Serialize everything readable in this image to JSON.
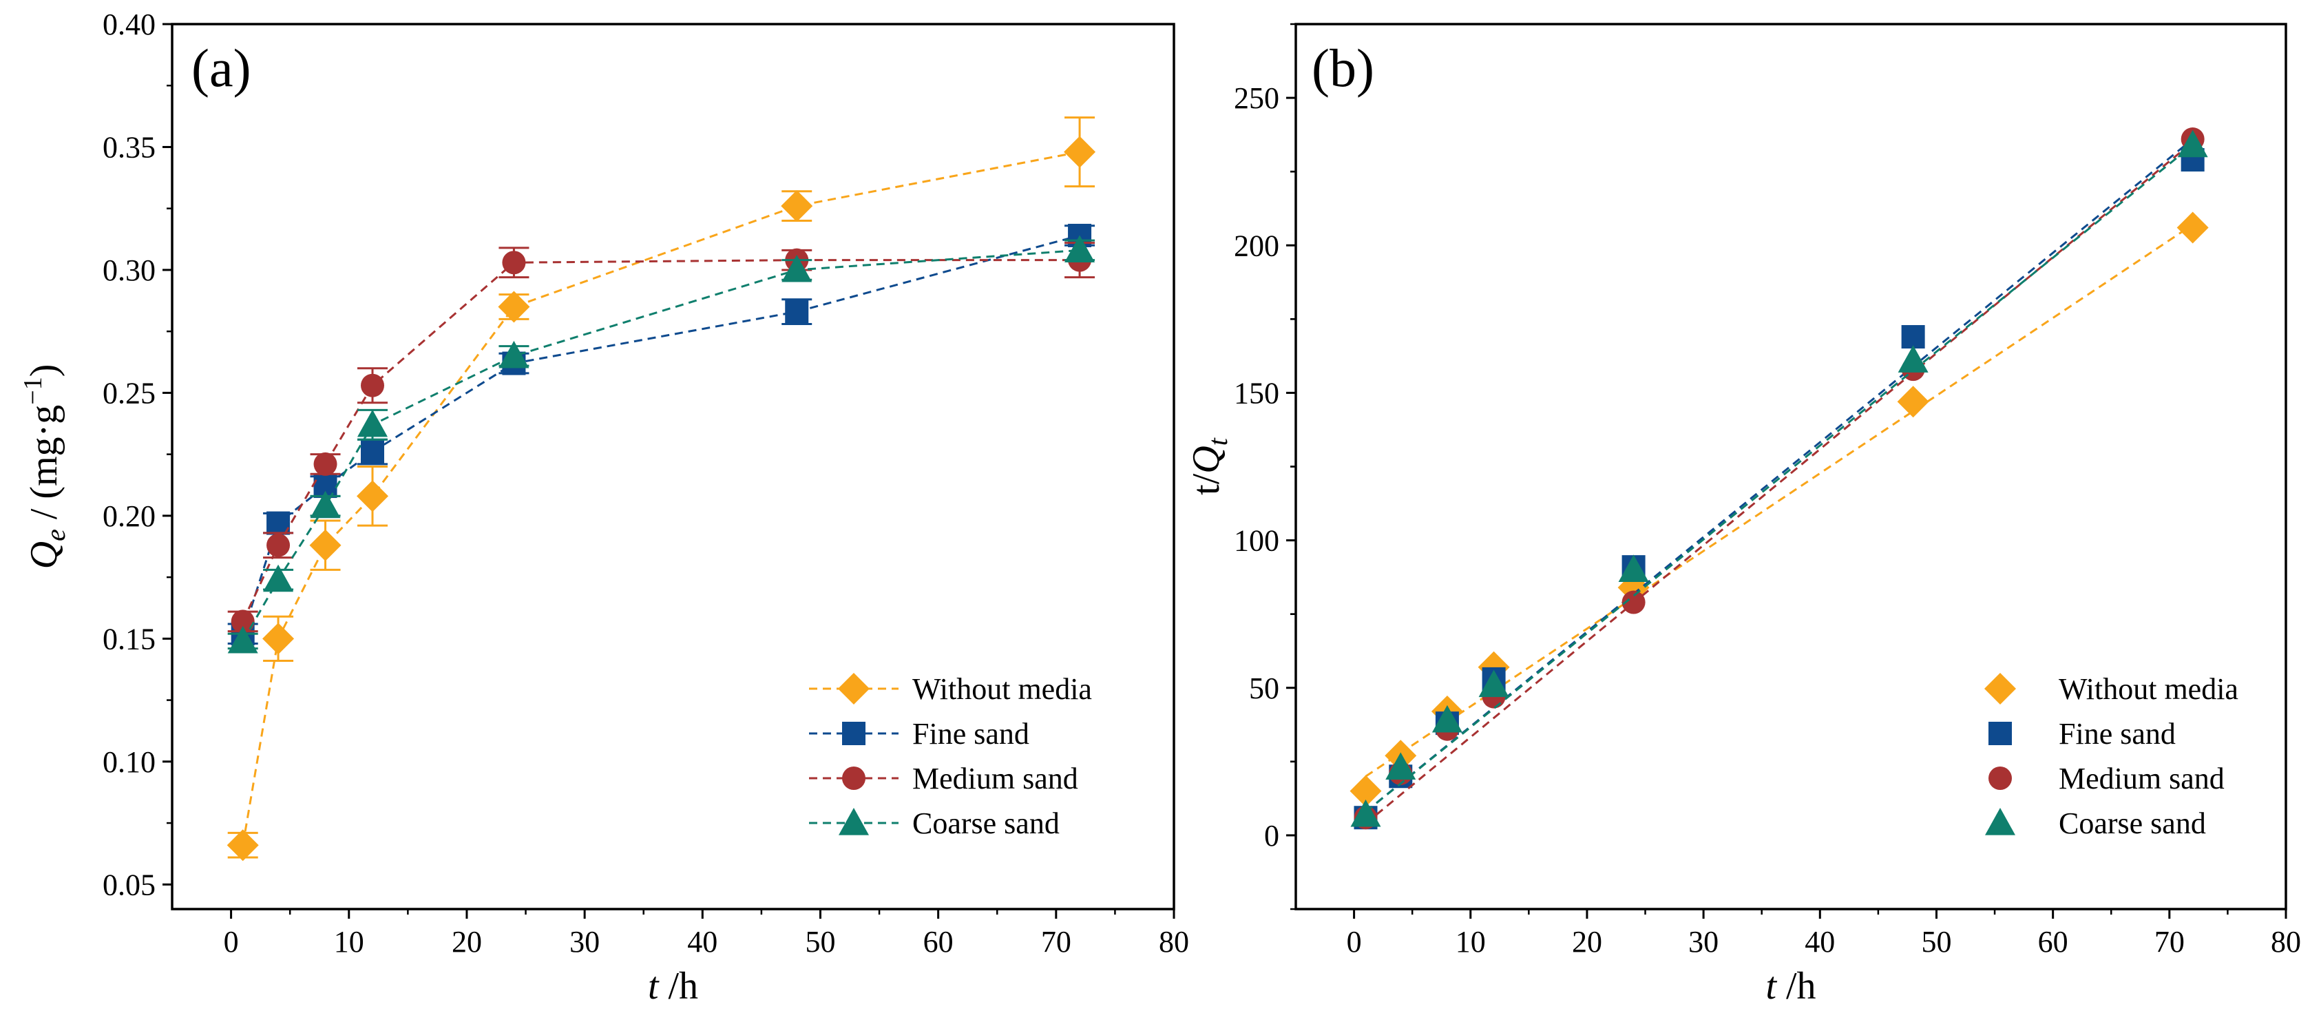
{
  "chart_data": [
    {
      "type": "line",
      "panel_label": "(a)",
      "xlabel": {
        "italic": "t",
        "rest": " /h"
      },
      "ylabel": {
        "italic": "Q",
        "sub": "e",
        "rest": " / (mg·g",
        "sup": "−1",
        "close": ")"
      },
      "xlim": [
        -5,
        80
      ],
      "ylim": [
        0.04,
        0.4
      ],
      "xticks": [
        0,
        10,
        20,
        30,
        40,
        50,
        60,
        70,
        80
      ],
      "yticks": [
        0.05,
        0.1,
        0.15,
        0.2,
        0.25,
        0.3,
        0.35,
        0.4
      ],
      "ytick_labels": [
        "0.05",
        "0.10",
        "0.15",
        "0.20",
        "0.25",
        "0.30",
        "0.35",
        "0.40"
      ],
      "legend_position": "bottom-right",
      "legend_lines": true,
      "series": [
        {
          "name": "Without media",
          "marker": "diamond",
          "color": "#F9A51A",
          "x": [
            1,
            4,
            8,
            12,
            24,
            48,
            72
          ],
          "y": [
            0.066,
            0.15,
            0.188,
            0.208,
            0.285,
            0.326,
            0.348
          ],
          "err": [
            0.005,
            0.009,
            0.01,
            0.012,
            0.005,
            0.006,
            0.014
          ]
        },
        {
          "name": "Fine sand",
          "marker": "square",
          "color": "#0E4A8E",
          "x": [
            1,
            4,
            8,
            12,
            24,
            48,
            72
          ],
          "y": [
            0.152,
            0.197,
            0.212,
            0.226,
            0.262,
            0.283,
            0.314
          ],
          "err": [
            0.004,
            0.004,
            0.004,
            0.005,
            0.004,
            0.005,
            0.004
          ]
        },
        {
          "name": "Medium sand",
          "marker": "circle",
          "color": "#A83232",
          "x": [
            1,
            4,
            8,
            12,
            24,
            48,
            72
          ],
          "y": [
            0.157,
            0.188,
            0.221,
            0.253,
            0.303,
            0.304,
            0.304
          ],
          "err": [
            0.004,
            0.005,
            0.004,
            0.007,
            0.006,
            0.004,
            0.007
          ]
        },
        {
          "name": "Coarse sand",
          "marker": "triangle",
          "color": "#0F7F6D",
          "x": [
            1,
            4,
            8,
            12,
            24,
            48,
            72
          ],
          "y": [
            0.149,
            0.174,
            0.204,
            0.237,
            0.265,
            0.3,
            0.308
          ],
          "err": [
            0.003,
            0.004,
            0.004,
            0.006,
            0.004,
            0.004,
            0.004
          ]
        }
      ]
    },
    {
      "type": "scatter",
      "panel_label": "(b)",
      "xlabel": {
        "italic": "t",
        "rest": " /h"
      },
      "ylabel": {
        "plain": "t/",
        "italic": "Q",
        "sub": "t"
      },
      "xlim": [
        -5,
        80
      ],
      "ylim": [
        -25,
        275
      ],
      "xticks": [
        0,
        10,
        20,
        30,
        40,
        50,
        60,
        70,
        80
      ],
      "yticks": [
        0,
        50,
        100,
        150,
        200,
        250
      ],
      "ytick_labels": [
        "0",
        "50",
        "100",
        "150",
        "200",
        "250"
      ],
      "legend_position": "bottom-right",
      "legend_lines": false,
      "series": [
        {
          "name": "Without media",
          "marker": "diamond",
          "color": "#F9A51A",
          "x": [
            1,
            4,
            8,
            12,
            24,
            48,
            72
          ],
          "y": [
            15,
            27,
            42,
            57,
            84,
            147,
            206
          ],
          "fit": [
            [
              1,
              20
            ],
            [
              72,
              207
            ]
          ]
        },
        {
          "name": "Fine sand",
          "marker": "square",
          "color": "#0E4A8E",
          "x": [
            1,
            4,
            8,
            12,
            24,
            48,
            72
          ],
          "y": [
            6,
            20,
            38,
            53,
            91,
            169,
            229
          ],
          "fit": [
            [
              1,
              8
            ],
            [
              72,
              236
            ]
          ]
        },
        {
          "name": "Medium sand",
          "marker": "circle",
          "color": "#A83232",
          "x": [
            1,
            4,
            8,
            12,
            24,
            48,
            72
          ],
          "y": [
            6,
            21,
            36,
            47,
            79,
            158,
            236
          ],
          "fit": [
            [
              1,
              4
            ],
            [
              72,
              235
            ]
          ]
        },
        {
          "name": "Coarse sand",
          "marker": "triangle",
          "color": "#0F7F6D",
          "x": [
            1,
            4,
            8,
            12,
            24,
            48,
            72
          ],
          "y": [
            7,
            23,
            39,
            51,
            90,
            161,
            234
          ],
          "fit": [
            [
              1,
              8
            ],
            [
              72,
              234
            ]
          ]
        }
      ]
    }
  ]
}
